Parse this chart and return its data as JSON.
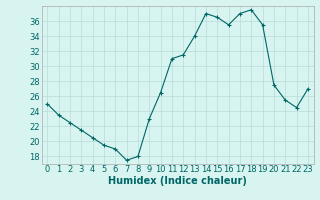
{
  "x": [
    0,
    1,
    2,
    3,
    4,
    5,
    6,
    7,
    8,
    9,
    10,
    11,
    12,
    13,
    14,
    15,
    16,
    17,
    18,
    19,
    20,
    21,
    22,
    23
  ],
  "y": [
    25,
    23.5,
    22.5,
    21.5,
    20.5,
    19.5,
    19,
    17.5,
    18,
    23,
    26.5,
    31,
    31.5,
    34,
    37,
    36.5,
    35.5,
    37,
    37.5,
    35.5,
    27.5,
    25.5,
    24.5,
    27
  ],
  "line_color": "#006666",
  "marker": "+",
  "marker_size": 3,
  "marker_color": "#006666",
  "background_color": "#d8f4f0",
  "grid_color": "#b8dcd8",
  "xlabel": "Humidex (Indice chaleur)",
  "xlabel_fontsize": 7,
  "ylabel_ticks": [
    18,
    20,
    22,
    24,
    26,
    28,
    30,
    32,
    34,
    36
  ],
  "ylim": [
    17,
    38
  ],
  "xlim": [
    -0.5,
    23.5
  ],
  "tick_fontsize": 6,
  "line_width": 0.8
}
